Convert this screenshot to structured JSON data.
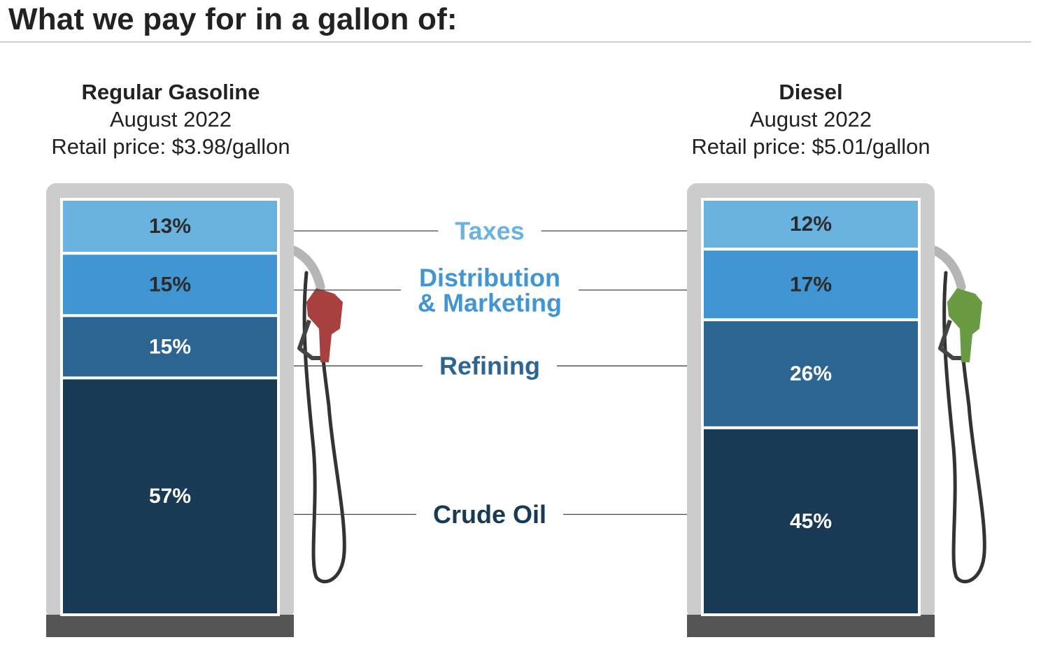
{
  "title": "What we pay for in a gallon of:",
  "colors": {
    "taxes": "#6ab3e0",
    "distribution": "#4195d3",
    "refining": "#2c6591",
    "crude": "#183a55",
    "pump_frame": "#cccccc",
    "pump_base": "#555555",
    "gas_nozzle": "#a8403f",
    "diesel_nozzle": "#6a9b43"
  },
  "pumps": [
    {
      "name": "Regular Gasoline",
      "period": "August 2022",
      "price_text": "Retail price: $3.98/gallon"
    },
    {
      "name": "Diesel",
      "period": "August 2022",
      "price_text": "Retail price: $5.01/gallon"
    }
  ],
  "chart_data": {
    "type": "bar",
    "stacked": true,
    "orientation": "vertical",
    "unit": "%",
    "categories": [
      "Regular Gasoline",
      "Diesel"
    ],
    "series": [
      {
        "name": "Taxes",
        "values": [
          13,
          12
        ],
        "labels": [
          "13%",
          "12%"
        ],
        "color": "#6ab3e0",
        "label_color": "#2b2b2b"
      },
      {
        "name": "Distribution & Marketing",
        "values": [
          15,
          17
        ],
        "labels": [
          "15%",
          "17%"
        ],
        "color": "#4195d3",
        "label_color": "#2b2b2b"
      },
      {
        "name": "Refining",
        "values": [
          15,
          26
        ],
        "labels": [
          "15%",
          "26%"
        ],
        "color": "#2c6591",
        "label_color": "#ffffff"
      },
      {
        "name": "Crude Oil",
        "values": [
          57,
          45
        ],
        "labels": [
          "57%",
          "45%"
        ],
        "color": "#183a55",
        "label_color": "#ffffff"
      }
    ],
    "legend_labels": [
      [
        "Taxes"
      ],
      [
        "Distribution",
        "& Marketing"
      ],
      [
        "Refining"
      ],
      [
        "Crude Oil"
      ]
    ],
    "legend_colors": [
      "#6ab3e0",
      "#4195d3",
      "#2c6591",
      "#183a55"
    ],
    "ylim": [
      0,
      100
    ],
    "legend_position": "center"
  }
}
